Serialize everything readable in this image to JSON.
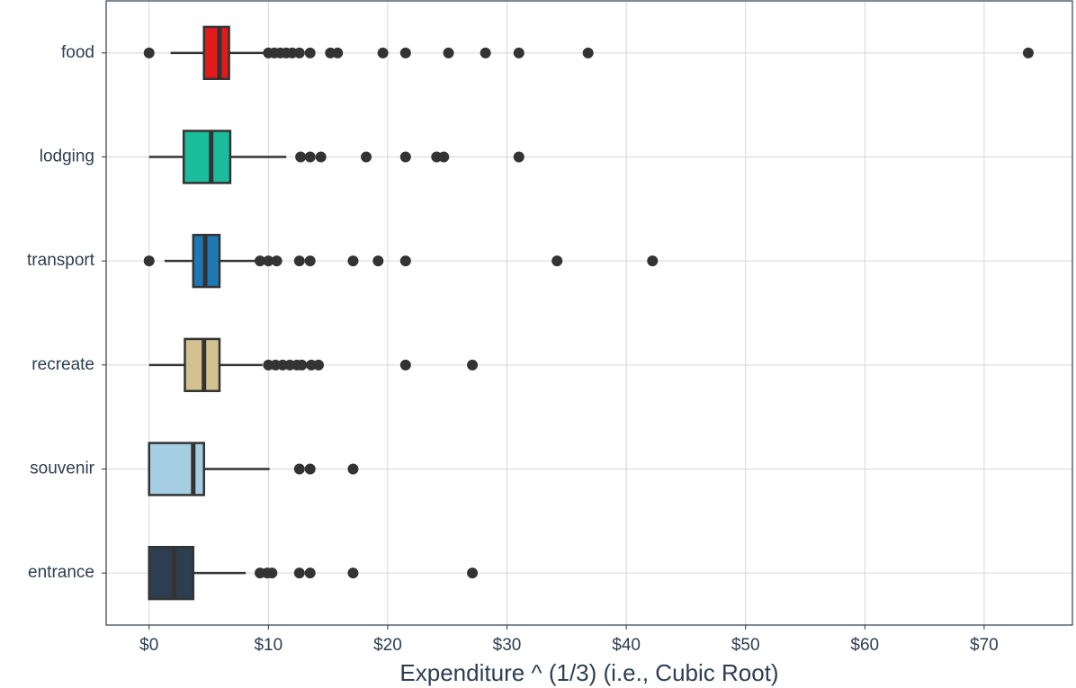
{
  "chart_data": {
    "type": "boxplot",
    "orientation": "horizontal",
    "x_label": "Expenditure ^ (1/3) (i.e., Cubic Root)",
    "categories": [
      "food",
      "lodging",
      "transport",
      "recreate",
      "souvenir",
      "entrance"
    ],
    "colors": [
      "#e31a1c",
      "#1abc9c",
      "#1f78b4",
      "#d2c28f",
      "#a6cee3",
      "#2c3e50"
    ],
    "boxes": [
      {
        "low": 1.8,
        "q1": 4.6,
        "median": 5.9,
        "q3": 6.7,
        "high": 9.8,
        "outliers": [
          0,
          10.0,
          10.5,
          11.0,
          11.5,
          12.0,
          12.6,
          13.5,
          15.2,
          15.8,
          19.6,
          21.5,
          25.1,
          28.2,
          31.0,
          36.8,
          73.7
        ]
      },
      {
        "low": 0,
        "q1": 2.9,
        "median": 5.2,
        "q3": 6.8,
        "high": 11.5,
        "outliers": [
          12.7,
          13.5,
          14.4,
          18.2,
          21.5,
          24.1,
          24.7,
          31.0
        ]
      },
      {
        "low": 1.3,
        "q1": 3.7,
        "median": 4.7,
        "q3": 5.9,
        "high": 9.0,
        "outliers": [
          0,
          9.3,
          10.0,
          10.7,
          12.6,
          13.5,
          17.1,
          19.2,
          21.5,
          34.2,
          42.2
        ]
      },
      {
        "low": 0,
        "q1": 3.0,
        "median": 4.6,
        "q3": 5.9,
        "high": 9.5,
        "outliers": [
          10.0,
          10.6,
          11.2,
          11.8,
          12.4,
          12.8,
          13.6,
          14.2,
          21.5,
          27.1
        ]
      },
      {
        "low": 0,
        "q1": 0,
        "median": 3.7,
        "q3": 4.6,
        "high": 10.1,
        "outliers": [
          12.6,
          13.5,
          17.1
        ]
      },
      {
        "low": 0,
        "q1": 0,
        "median": 2.1,
        "q3": 3.7,
        "high": 8.1,
        "outliers": [
          9.3,
          9.9,
          10.3,
          12.6,
          13.5,
          17.1,
          27.1
        ]
      }
    ],
    "xlim": [
      -3.6,
      77.4
    ],
    "xticks": [
      {
        "value": 0,
        "label": "$0"
      },
      {
        "value": 10,
        "label": "$10"
      },
      {
        "value": 20,
        "label": "$20"
      },
      {
        "value": 30,
        "label": "$30"
      },
      {
        "value": 40,
        "label": "$40"
      },
      {
        "value": 50,
        "label": "$50"
      },
      {
        "value": 60,
        "label": "$60"
      },
      {
        "value": 70,
        "label": "$70"
      }
    ],
    "grid": true
  }
}
